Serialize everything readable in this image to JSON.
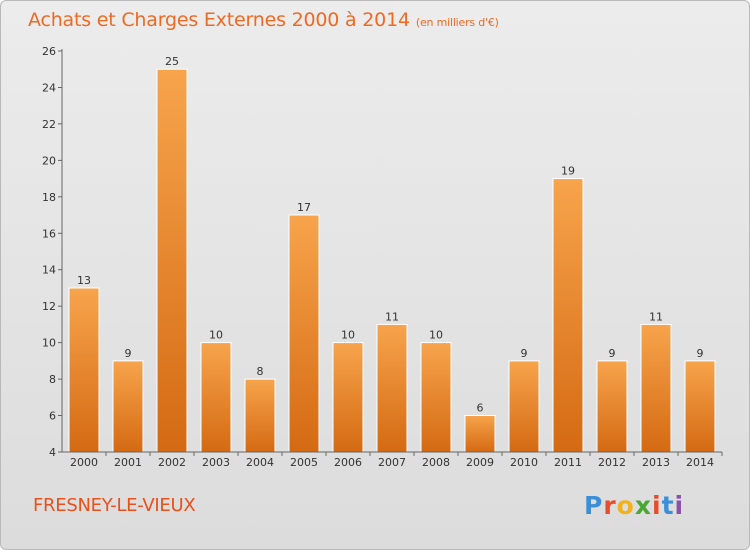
{
  "header": {
    "title": "Achats et Charges Externes 2000 à 2014",
    "subtitle": "(en milliers d'€)"
  },
  "footer": {
    "location": "FRESNEY-LE-VIEUX",
    "brand": "Proxiti",
    "brand_colors": [
      "#3b8fd9",
      "#e84c2b",
      "#f2b21c",
      "#4aa832",
      "#e84c2b",
      "#3b8fd9",
      "#8c4fb0"
    ]
  },
  "chart_data": {
    "type": "bar",
    "title": "Achats et Charges Externes 2000 à 2014",
    "subtitle": "(en milliers d'€)",
    "categories": [
      "2000",
      "2001",
      "2002",
      "2003",
      "2004",
      "2005",
      "2006",
      "2007",
      "2008",
      "2009",
      "2010",
      "2011",
      "2012",
      "2013",
      "2014"
    ],
    "values": [
      13,
      9,
      25,
      10,
      8,
      17,
      10,
      11,
      10,
      6,
      9,
      19,
      9,
      11,
      9
    ],
    "ylim": [
      4,
      26
    ],
    "yticks": [
      4,
      6,
      8,
      10,
      12,
      14,
      16,
      18,
      20,
      22,
      24,
      26
    ],
    "grid": false,
    "bar_color_top": "#f7a44c",
    "bar_color_bottom": "#d46a13",
    "xlabel": "",
    "ylabel": ""
  }
}
